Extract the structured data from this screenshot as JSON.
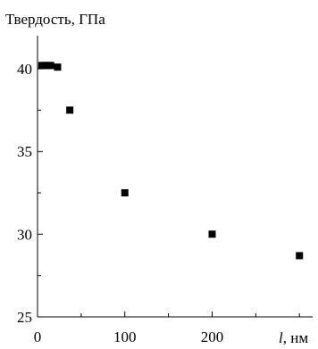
{
  "chart_data": {
    "type": "scatter",
    "title": "",
    "ylabel": "Твердость, ГПа",
    "xlabel_var": "l",
    "xlabel_unit": ", нм",
    "xlim": [
      0,
      310
    ],
    "ylim": [
      25,
      42
    ],
    "xticks": [
      0,
      100,
      200
    ],
    "xtick_labels": [
      "0",
      "100",
      "200"
    ],
    "yticks": [
      25,
      30,
      35,
      40
    ],
    "ytick_labels": [
      "25",
      "30",
      "35",
      "40"
    ],
    "x": [
      5,
      9,
      12,
      15,
      23,
      37,
      100,
      200,
      300
    ],
    "y": [
      40.2,
      40.2,
      40.2,
      40.2,
      40.1,
      37.5,
      32.5,
      30.0,
      28.7
    ],
    "grid": false,
    "marker": "square",
    "color": "#000000"
  }
}
